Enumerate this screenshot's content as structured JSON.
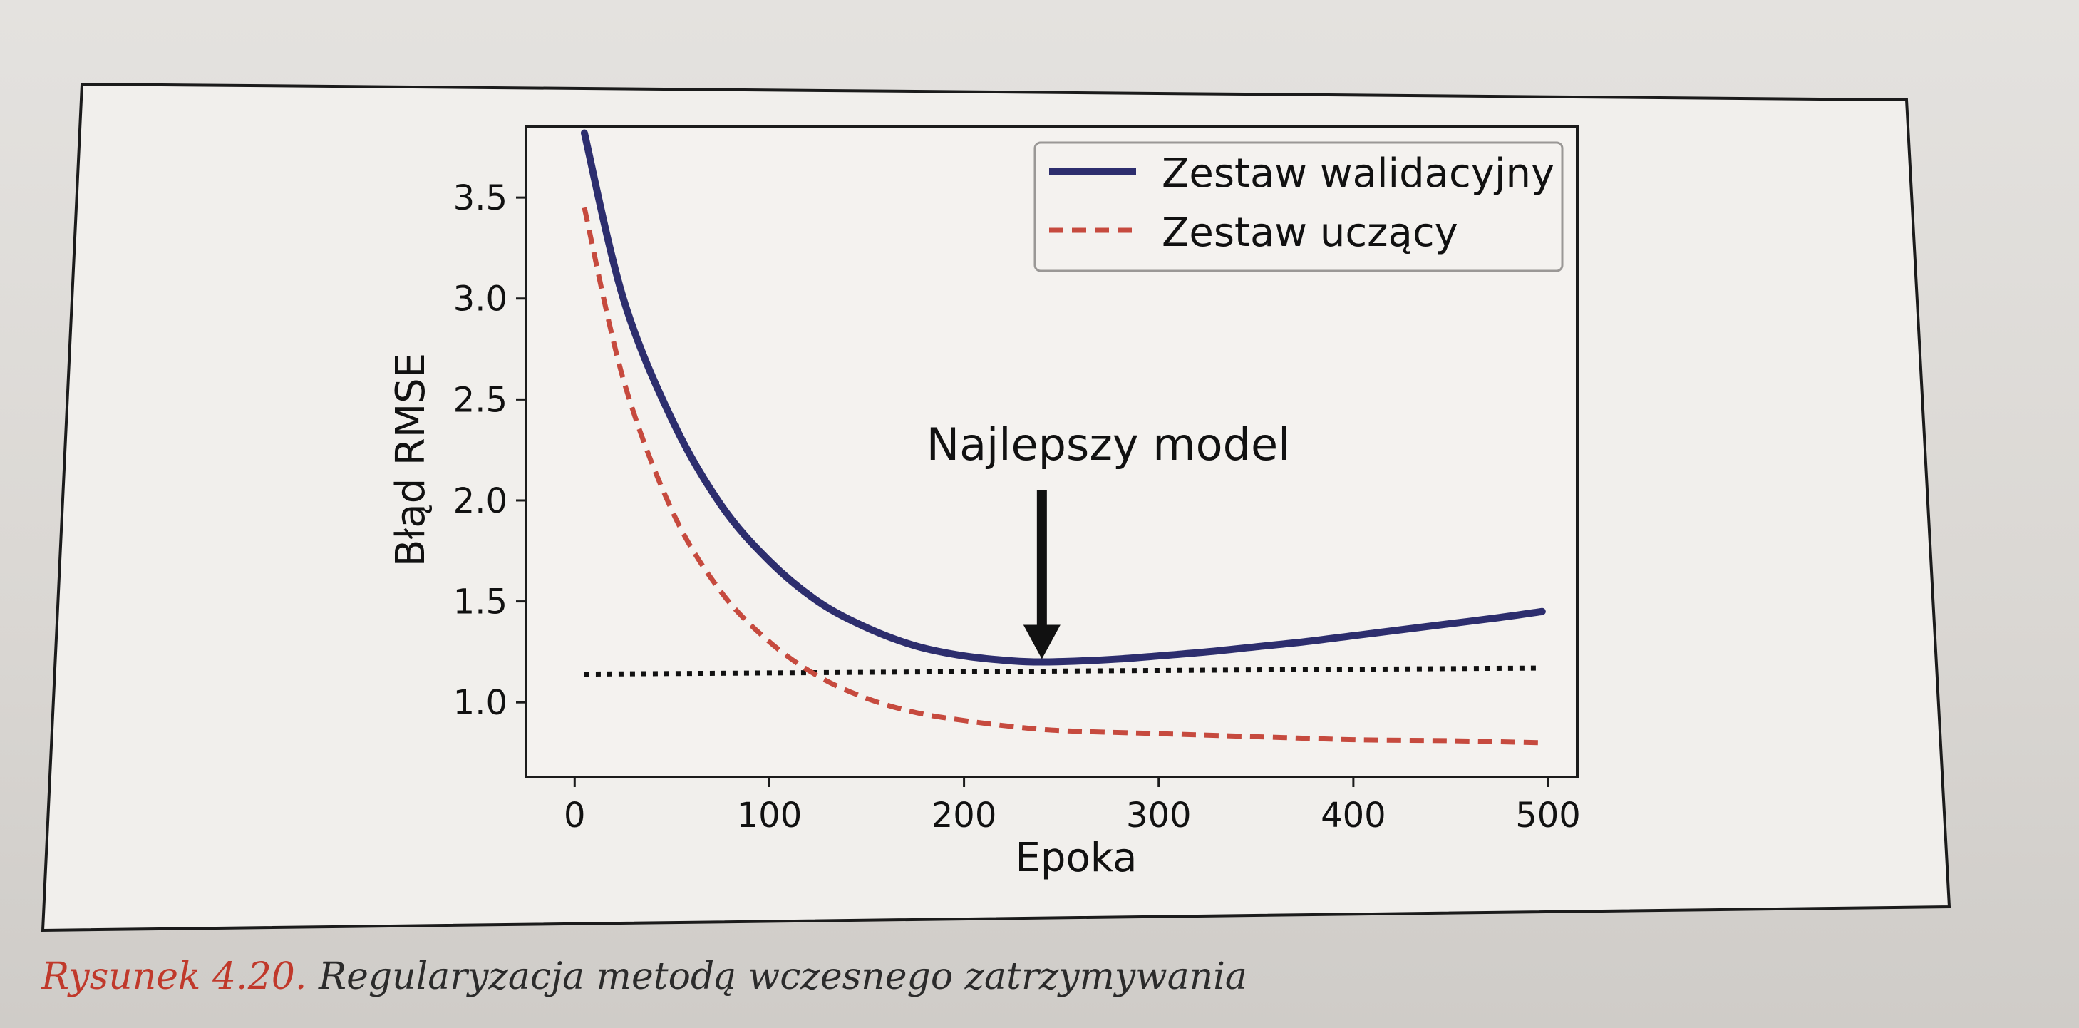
{
  "caption": {
    "figure_label": "Rysunek 4.20.",
    "text": "Regularyzacja metodą wczesnego zatrzymywania"
  },
  "chart_data": {
    "type": "line",
    "xlabel": "Epoka",
    "ylabel": "Błąd RMSE",
    "xlim": [
      -25,
      515
    ],
    "ylim": [
      0.63,
      3.85
    ],
    "xticks": [
      0,
      100,
      200,
      300,
      400,
      500
    ],
    "yticks": [
      1.0,
      1.5,
      2.0,
      2.5,
      3.0,
      3.5
    ],
    "grid": false,
    "legend_position": "top-right",
    "series": [
      {
        "name": "Zestaw walidacyjny",
        "style": "solid",
        "color": "#2d2e6e",
        "x": [
          5,
          25,
          50,
          75,
          100,
          125,
          150,
          175,
          200,
          225,
          240,
          260,
          280,
          300,
          325,
          350,
          375,
          400,
          425,
          450,
          475,
          497
        ],
        "y": [
          3.82,
          3.0,
          2.4,
          1.98,
          1.7,
          1.5,
          1.37,
          1.28,
          1.23,
          1.205,
          1.2,
          1.205,
          1.215,
          1.23,
          1.25,
          1.275,
          1.3,
          1.33,
          1.36,
          1.39,
          1.42,
          1.45
        ]
      },
      {
        "name": "Zestaw uczący",
        "style": "dashed",
        "color": "#c64a3e",
        "x": [
          5,
          25,
          50,
          75,
          100,
          125,
          150,
          175,
          200,
          225,
          250,
          300,
          350,
          400,
          450,
          497
        ],
        "y": [
          3.45,
          2.6,
          1.95,
          1.55,
          1.3,
          1.13,
          1.02,
          0.95,
          0.91,
          0.88,
          0.86,
          0.845,
          0.83,
          0.815,
          0.81,
          0.8
        ]
      },
      {
        "name": "",
        "style": "dotted",
        "color": "#111111",
        "x": [
          5,
          497
        ],
        "y": [
          1.14,
          1.17
        ]
      }
    ],
    "annotations": [
      {
        "text": "Najlepszy model",
        "arrow_from": [
          240,
          2.05
        ],
        "arrow_to": [
          240,
          1.2
        ]
      }
    ]
  }
}
